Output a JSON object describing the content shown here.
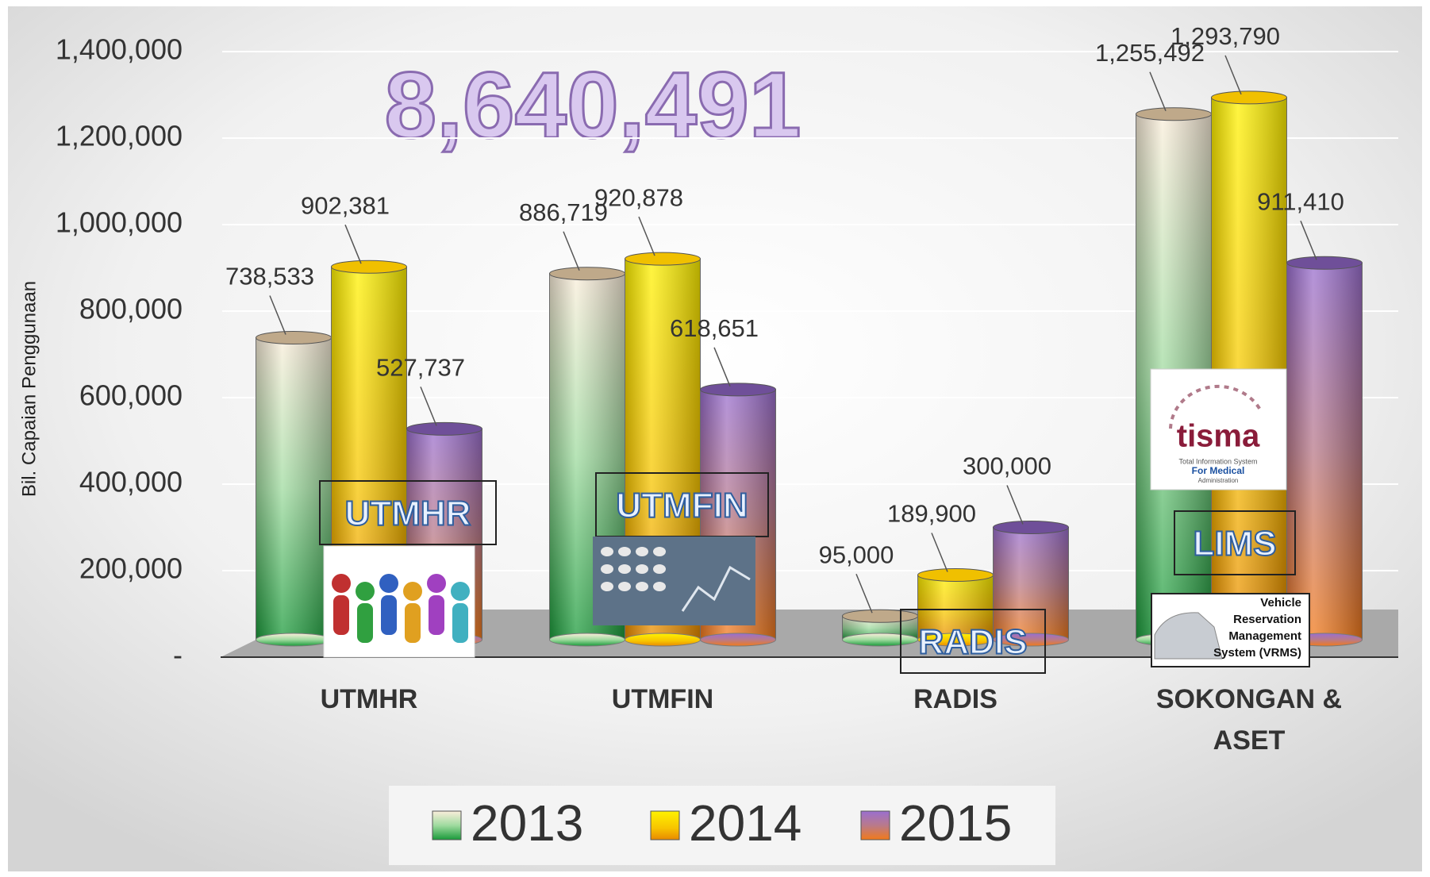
{
  "chart_data": {
    "type": "bar",
    "annotation": "8,640,491",
    "y_label": "Bil. Capaian Penggunaan",
    "categories": [
      "UTMHR",
      "UTMFIN",
      "RADIS",
      "SOKONGAN & ASET"
    ],
    "series": [
      {
        "name": "2013",
        "color": "#3cb44a",
        "values": [
          738533,
          886719,
          95000,
          1255492
        ],
        "value_labels": [
          "738,533",
          "886,719",
          "95,000",
          "1,255,492"
        ]
      },
      {
        "name": "2014",
        "color": "#f5c400",
        "values": [
          902381,
          920878,
          189900,
          1293790
        ],
        "value_labels": [
          "902,381",
          "920,878",
          "189,900",
          "1,293,790"
        ]
      },
      {
        "name": "2015",
        "color": "#8a5fb8",
        "values": [
          527737,
          618651,
          300000,
          911410
        ],
        "value_labels": [
          "527,737",
          "618,651",
          "300,000",
          "911,410"
        ]
      }
    ],
    "ylim": [
      0,
      1400000
    ],
    "yticks": [
      {
        "value": 0,
        "label": "-"
      },
      {
        "value": 200000,
        "label": "200,000"
      },
      {
        "value": 400000,
        "label": "400,000"
      },
      {
        "value": 600000,
        "label": "600,000"
      },
      {
        "value": 800000,
        "label": "800,000"
      },
      {
        "value": 1000000,
        "label": "1,000,000"
      },
      {
        "value": 1200000,
        "label": "1,200,000"
      },
      {
        "value": 1400000,
        "label": "1,400,000"
      }
    ],
    "grid": true,
    "overlay_labels": [
      "UTMHR",
      "UTMFIN",
      "RADIS",
      "LIMS"
    ],
    "logo_text": [
      "tisma",
      "Total Information System",
      "For Medical",
      "Administration"
    ],
    "vrms_text": [
      "Vehicle",
      "Reservation",
      "Management",
      "System (VRMS)"
    ]
  }
}
